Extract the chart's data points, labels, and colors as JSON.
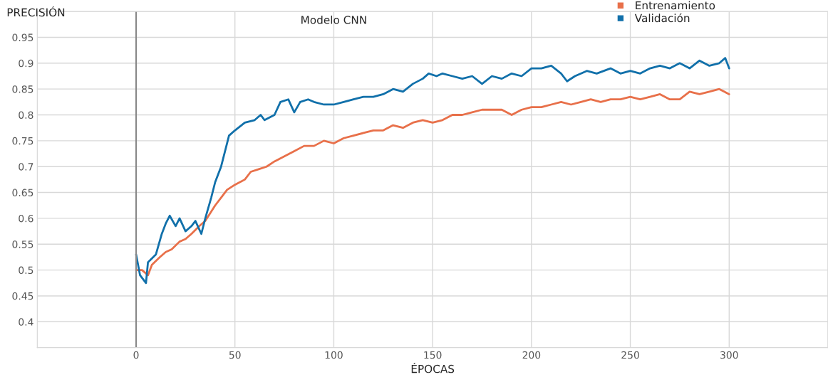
{
  "chart_data": {
    "type": "line",
    "title": "Modelo CNN",
    "xlabel": "ÉPOCAS",
    "ylabel": "PRECISIÓN",
    "xlim": [
      -50,
      350
    ],
    "xticks": [
      {
        "value": -50,
        "label": null
      },
      0,
      50,
      100,
      150,
      200,
      250,
      300,
      {
        "value": 350,
        "label": null
      }
    ],
    "ylim": [
      0.35,
      1.0
    ],
    "yticks": [
      {
        "value": 0.35,
        "label": null
      },
      0.4,
      0.45,
      0.5,
      0.55,
      0.6,
      0.65,
      0.7,
      0.75,
      0.8,
      0.85,
      0.9,
      0.95,
      {
        "value": 1.0,
        "label": null
      }
    ],
    "grid": true,
    "legend": "top right",
    "marker": "none",
    "line_style": "solid",
    "ref_lines": [
      {
        "axis": "x",
        "value": 0,
        "color": "#888888"
      }
    ],
    "series": [
      {
        "name": "Entrenamiento",
        "color": "#e8704a",
        "x": [
          0,
          3,
          6,
          8,
          12,
          15,
          18,
          22,
          25,
          28,
          32,
          35,
          40,
          43,
          46,
          50,
          55,
          58,
          62,
          66,
          70,
          75,
          80,
          85,
          90,
          95,
          100,
          105,
          110,
          115,
          120,
          125,
          130,
          135,
          140,
          145,
          150,
          155,
          160,
          165,
          170,
          175,
          180,
          185,
          190,
          195,
          200,
          205,
          210,
          215,
          220,
          225,
          230,
          235,
          240,
          245,
          250,
          255,
          260,
          265,
          270,
          275,
          280,
          285,
          290,
          295,
          300
        ],
        "values": [
          0.5,
          0.5,
          0.49,
          0.51,
          0.525,
          0.535,
          0.54,
          0.555,
          0.56,
          0.57,
          0.585,
          0.595,
          0.625,
          0.64,
          0.655,
          0.665,
          0.675,
          0.69,
          0.695,
          0.7,
          0.71,
          0.72,
          0.73,
          0.74,
          0.74,
          0.75,
          0.745,
          0.755,
          0.76,
          0.765,
          0.77,
          0.77,
          0.78,
          0.775,
          0.785,
          0.79,
          0.785,
          0.79,
          0.8,
          0.8,
          0.805,
          0.81,
          0.81,
          0.81,
          0.8,
          0.81,
          0.815,
          0.815,
          0.82,
          0.825,
          0.82,
          0.825,
          0.83,
          0.825,
          0.83,
          0.83,
          0.835,
          0.83,
          0.835,
          0.84,
          0.83,
          0.83,
          0.845,
          0.84,
          0.845,
          0.85,
          0.84
        ]
      },
      {
        "name": "Validación",
        "color": "#1170aa",
        "x": [
          0,
          2,
          5,
          6,
          10,
          13,
          15,
          17,
          20,
          22,
          25,
          28,
          30,
          33,
          35,
          38,
          40,
          43,
          45,
          47,
          50,
          55,
          60,
          63,
          65,
          70,
          73,
          77,
          80,
          83,
          87,
          90,
          95,
          100,
          105,
          110,
          115,
          120,
          125,
          130,
          135,
          140,
          145,
          148,
          152,
          155,
          160,
          165,
          170,
          175,
          180,
          185,
          190,
          195,
          200,
          205,
          210,
          215,
          218,
          222,
          228,
          233,
          240,
          245,
          250,
          255,
          260,
          265,
          270,
          275,
          280,
          285,
          290,
          295,
          298,
          300
        ],
        "values": [
          0.53,
          0.49,
          0.475,
          0.515,
          0.53,
          0.57,
          0.59,
          0.605,
          0.585,
          0.6,
          0.575,
          0.585,
          0.595,
          0.57,
          0.6,
          0.64,
          0.67,
          0.7,
          0.73,
          0.76,
          0.77,
          0.785,
          0.79,
          0.8,
          0.79,
          0.8,
          0.825,
          0.83,
          0.805,
          0.825,
          0.83,
          0.825,
          0.82,
          0.82,
          0.825,
          0.83,
          0.835,
          0.835,
          0.84,
          0.85,
          0.845,
          0.86,
          0.87,
          0.88,
          0.875,
          0.88,
          0.875,
          0.87,
          0.875,
          0.86,
          0.875,
          0.87,
          0.88,
          0.875,
          0.89,
          0.89,
          0.895,
          0.88,
          0.865,
          0.875,
          0.885,
          0.88,
          0.89,
          0.88,
          0.885,
          0.88,
          0.89,
          0.895,
          0.89,
          0.9,
          0.89,
          0.905,
          0.895,
          0.9,
          0.91,
          0.89
        ]
      }
    ]
  }
}
